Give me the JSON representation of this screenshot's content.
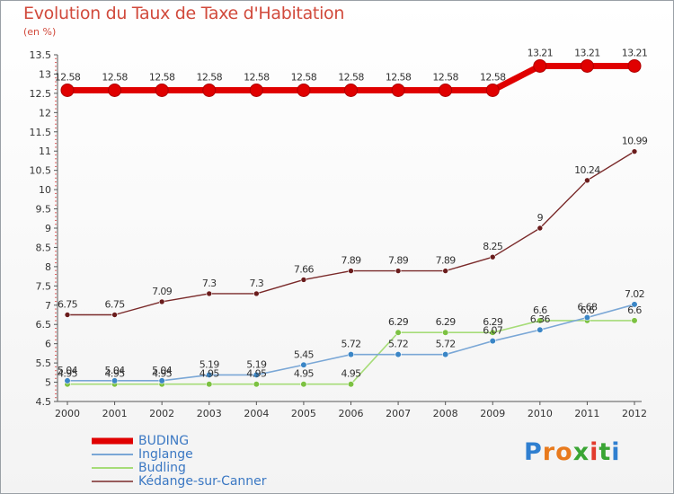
{
  "page": {
    "title": "Evolution du Taux de Taxe d'Habitation",
    "subtitle": "(en %)",
    "logo_text": "Proxiti"
  },
  "chart_data": {
    "type": "line",
    "title": "Evolution du Taux de Taxe d'Habitation",
    "ylabel": "(en %)",
    "xlabel": "",
    "x": [
      "2000",
      "2001",
      "2002",
      "2003",
      "2004",
      "2005",
      "2006",
      "2007",
      "2008",
      "2009",
      "2010",
      "2011",
      "2012"
    ],
    "ylim": [
      4.5,
      13.5
    ],
    "yticks": [
      "4.5",
      "5",
      "5.5",
      "6",
      "6.5",
      "7",
      "7.5",
      "8",
      "8.5",
      "9",
      "9.5",
      "10",
      "10.5",
      "11",
      "11.5",
      "12",
      "12.5",
      "13",
      "13.5"
    ],
    "grid": false,
    "legend_position": "bottom-left",
    "series": [
      {
        "name": "BUDING",
        "color": "#e00000",
        "values": [
          12.58,
          12.58,
          12.58,
          12.58,
          12.58,
          12.58,
          12.58,
          12.58,
          12.58,
          12.58,
          13.21,
          13.21,
          13.21
        ],
        "labels": [
          "12.58",
          "12.58",
          "12.58",
          "12.58",
          "12.58",
          "12.58",
          "12.58",
          "12.58",
          "12.58",
          "12.58",
          "13.21",
          "13.21",
          "13.21"
        ]
      },
      {
        "name": "Inglange",
        "color": "#7aa7d6",
        "marker": "#3b86c6",
        "values": [
          5.04,
          5.04,
          5.04,
          5.19,
          5.19,
          5.45,
          5.72,
          5.72,
          5.72,
          6.07,
          6.36,
          6.68,
          7.02
        ],
        "labels": [
          "5.04",
          "5.04",
          "5.04",
          "5.19",
          "5.19",
          "5.45",
          "5.72",
          "5.72",
          "5.72",
          "6.07",
          "6.36",
          "6.68",
          "7.02"
        ]
      },
      {
        "name": "Budling",
        "color": "#a6dc78",
        "marker": "#7cc142",
        "values": [
          4.95,
          4.95,
          4.95,
          4.95,
          4.95,
          4.95,
          4.95,
          6.29,
          6.29,
          6.29,
          6.6,
          6.6,
          6.6
        ],
        "labels": [
          "4.95",
          "4.95",
          "4.95",
          "4.95",
          "4.95",
          "4.95",
          "4.95",
          "6.29",
          "6.29",
          "6.29",
          "6.6",
          "6.6",
          "6.6"
        ]
      },
      {
        "name": "Kédange-sur-Canner",
        "color": "#7a2a2a",
        "marker": "#6a1c1c",
        "values": [
          6.75,
          6.75,
          7.09,
          7.3,
          7.3,
          7.66,
          7.89,
          7.89,
          7.89,
          8.25,
          9,
          10.24,
          10.99
        ],
        "labels": [
          "6.75",
          "6.75",
          "7.09",
          "7.3",
          "7.3",
          "7.66",
          "7.89",
          "7.89",
          "7.89",
          "8.25",
          "9",
          "10.24",
          "10.99"
        ]
      }
    ]
  }
}
